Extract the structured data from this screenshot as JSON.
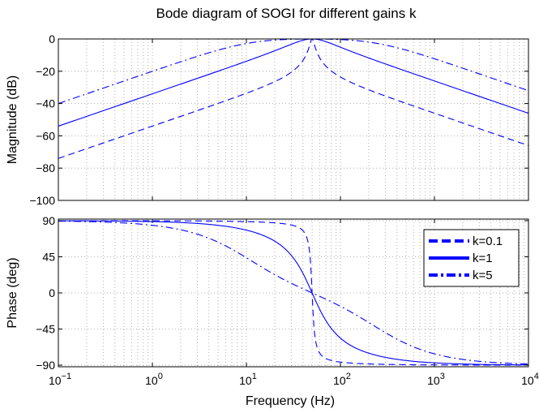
{
  "chart_data": {
    "type": "line",
    "title": "Bode diagram of SOGI for different gains k",
    "xlabel": "Frequency  (Hz)",
    "x_scale": "log",
    "xlim": [
      0.1,
      10000
    ],
    "x_ticks": [
      {
        "value": 0.1,
        "base": "10",
        "exp": "−1"
      },
      {
        "value": 1,
        "base": "10",
        "exp": "0"
      },
      {
        "value": 10,
        "base": "10",
        "exp": "1"
      },
      {
        "value": 100,
        "base": "10",
        "exp": "2"
      },
      {
        "value": 1000,
        "base": "10",
        "exp": "3"
      },
      {
        "value": 10000,
        "base": "10",
        "exp": "4"
      }
    ],
    "grid": true,
    "center_frequency": 50,
    "gains": [
      0.1,
      1,
      5
    ],
    "panels": [
      {
        "id": "magnitude",
        "ylabel": "Magnitude (dB)",
        "ylim": [
          -100,
          0
        ],
        "y_ticks": [
          {
            "value": 0,
            "label": "0"
          },
          {
            "value": -20,
            "label": "−20"
          },
          {
            "value": -40,
            "label": "−40"
          },
          {
            "value": -60,
            "label": "−60"
          },
          {
            "value": -80,
            "label": "−80"
          },
          {
            "value": -100,
            "label": "−100"
          }
        ]
      },
      {
        "id": "phase",
        "ylabel": "Phase (deg)",
        "ylim": [
          -92,
          92
        ],
        "y_ticks": [
          {
            "value": 90,
            "label": "90"
          },
          {
            "value": 45,
            "label": "45"
          },
          {
            "value": 0,
            "label": "0"
          },
          {
            "value": -45,
            "label": "−45"
          },
          {
            "value": -90,
            "label": "−90"
          }
        ],
        "legend": "top-right"
      }
    ],
    "series": [
      {
        "name": "k=0.1",
        "k": 0.1,
        "style": "dashed",
        "color": "#0000ff"
      },
      {
        "name": "k=1",
        "k": 1,
        "style": "solid",
        "color": "#0000ff"
      },
      {
        "name": "k=5",
        "k": 5,
        "style": "dashdot",
        "color": "#0000ff"
      }
    ]
  }
}
